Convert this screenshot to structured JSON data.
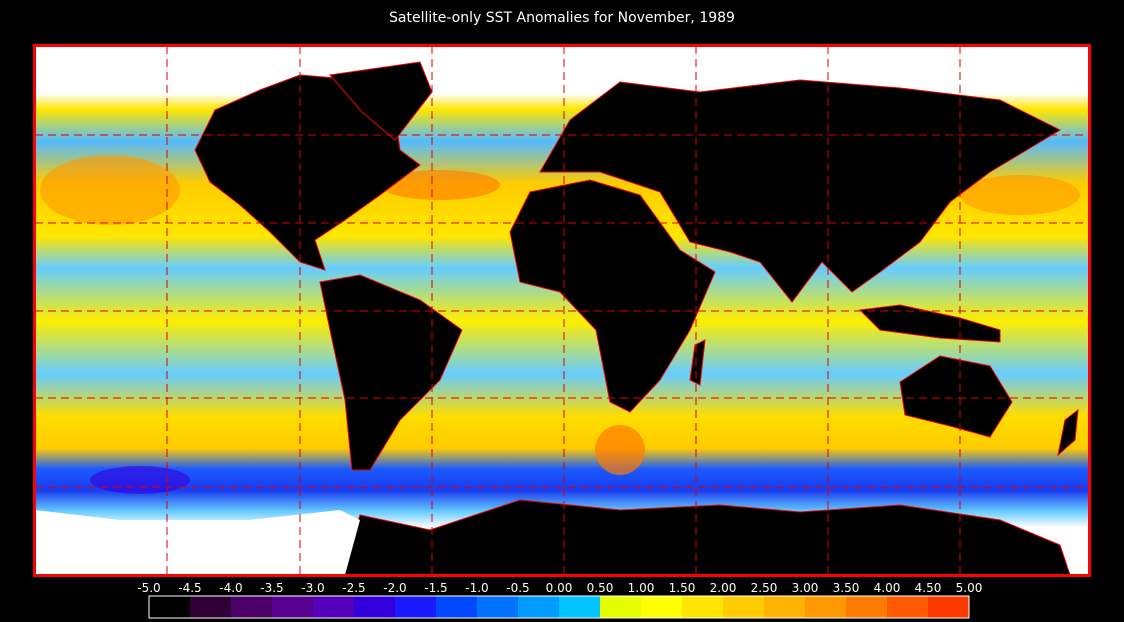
{
  "title": "Satellite-only SST Anomalies for November, 1989",
  "colorbar": {
    "labels": [
      "-5.0",
      "-4.5",
      "-4.0",
      "-3.5",
      "-3.0",
      "-2.5",
      "-2.0",
      "-1.5",
      "-1.0",
      "-0.5",
      "0.00",
      "0.50",
      "1.00",
      "1.50",
      "2.00",
      "2.50",
      "3.00",
      "3.50",
      "4.00",
      "4.50",
      "5.00"
    ],
    "colors": [
      "#000000",
      "#2e0033",
      "#4a0066",
      "#55008f",
      "#5500bb",
      "#3300dd",
      "#1a1aff",
      "#0048ff",
      "#0074ff",
      "#009cff",
      "#00c4ff",
      "#e6ff00",
      "#ffff00",
      "#ffe600",
      "#ffcc00",
      "#ffb300",
      "#ff9900",
      "#ff7a00",
      "#ff5a00",
      "#ff3a00",
      "#ff1a00"
    ]
  }
}
